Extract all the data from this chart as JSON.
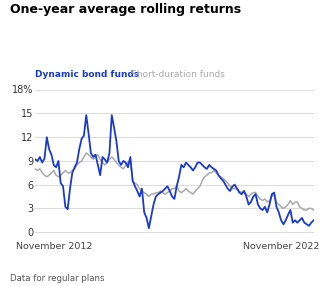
{
  "title": "One-year average rolling returns",
  "legend_dynamic": "Dynamic bond funds",
  "legend_short": "Short-duration funds",
  "footnote": "Data for regular plans",
  "xlabel_left": "November 2012",
  "xlabel_right": "November 2022",
  "color_dynamic": "#1a3acc",
  "color_short": "#aaaaaa",
  "ytick_labels": [
    "0",
    "3",
    "6",
    "9",
    "12",
    "15"
  ],
  "yticks": [
    0,
    3,
    6,
    9,
    12,
    15
  ],
  "ylim": [
    -0.3,
    18.5
  ],
  "xlim": [
    0,
    1
  ],
  "dynamic_bond": [
    9.2,
    9.0,
    9.5,
    8.8,
    9.3,
    12.0,
    10.5,
    9.8,
    8.5,
    8.2,
    9.0,
    6.2,
    5.8,
    3.2,
    2.9,
    5.5,
    7.5,
    8.2,
    8.8,
    10.5,
    11.8,
    12.2,
    14.8,
    12.5,
    10.0,
    9.5,
    9.8,
    8.5,
    7.2,
    9.5,
    9.2,
    8.8,
    10.0,
    14.8,
    13.2,
    11.5,
    9.0,
    8.5,
    9.0,
    8.8,
    8.2,
    9.5,
    6.5,
    5.8,
    5.2,
    4.5,
    5.5,
    2.5,
    1.8,
    0.5,
    2.0,
    3.5,
    4.5,
    4.8,
    5.0,
    5.2,
    5.5,
    5.8,
    5.2,
    4.5,
    4.2,
    5.8,
    7.0,
    8.5,
    8.2,
    8.8,
    8.5,
    8.2,
    7.8,
    8.2,
    8.8,
    8.8,
    8.5,
    8.2,
    8.0,
    8.5,
    8.2,
    8.0,
    7.8,
    7.2,
    6.8,
    6.5,
    6.0,
    5.5,
    5.2,
    5.8,
    6.0,
    5.5,
    5.0,
    4.8,
    5.2,
    4.5,
    3.5,
    3.8,
    4.5,
    4.8,
    3.5,
    3.0,
    2.8,
    3.2,
    2.5,
    3.5,
    4.8,
    5.0,
    3.2,
    2.5,
    1.5,
    1.0,
    1.5,
    2.2,
    2.8,
    1.2,
    1.5,
    1.2,
    1.5,
    1.8,
    1.2,
    1.0,
    0.8,
    1.2,
    1.5
  ],
  "short_duration": [
    8.0,
    7.8,
    8.0,
    7.5,
    7.2,
    7.0,
    7.2,
    7.5,
    7.8,
    7.2,
    7.0,
    7.2,
    7.5,
    7.8,
    7.5,
    7.5,
    7.8,
    8.0,
    8.5,
    8.8,
    9.0,
    9.5,
    10.0,
    9.8,
    9.5,
    9.2,
    9.5,
    9.8,
    9.2,
    8.8,
    8.5,
    8.8,
    9.2,
    9.5,
    9.2,
    8.8,
    8.5,
    8.2,
    8.0,
    8.5,
    8.8,
    9.2,
    6.5,
    6.2,
    6.0,
    5.5,
    5.2,
    5.0,
    4.8,
    4.5,
    4.8,
    4.8,
    5.0,
    5.0,
    5.2,
    5.0,
    4.8,
    5.0,
    5.2,
    5.5,
    5.5,
    5.8,
    5.2,
    5.0,
    5.2,
    5.5,
    5.2,
    5.0,
    4.8,
    5.2,
    5.5,
    5.8,
    6.5,
    7.0,
    7.2,
    7.5,
    7.5,
    7.8,
    7.5,
    7.2,
    7.0,
    6.8,
    6.5,
    6.2,
    5.8,
    5.5,
    5.5,
    5.5,
    5.2,
    5.0,
    5.2,
    4.8,
    4.5,
    4.8,
    5.0,
    5.0,
    4.5,
    4.2,
    4.0,
    4.2,
    3.8,
    4.0,
    4.5,
    4.8,
    3.8,
    3.5,
    3.2,
    3.0,
    3.2,
    3.5,
    4.0,
    3.5,
    3.8,
    3.8,
    3.2,
    3.0,
    2.8,
    2.8,
    3.0,
    3.0,
    2.8
  ]
}
